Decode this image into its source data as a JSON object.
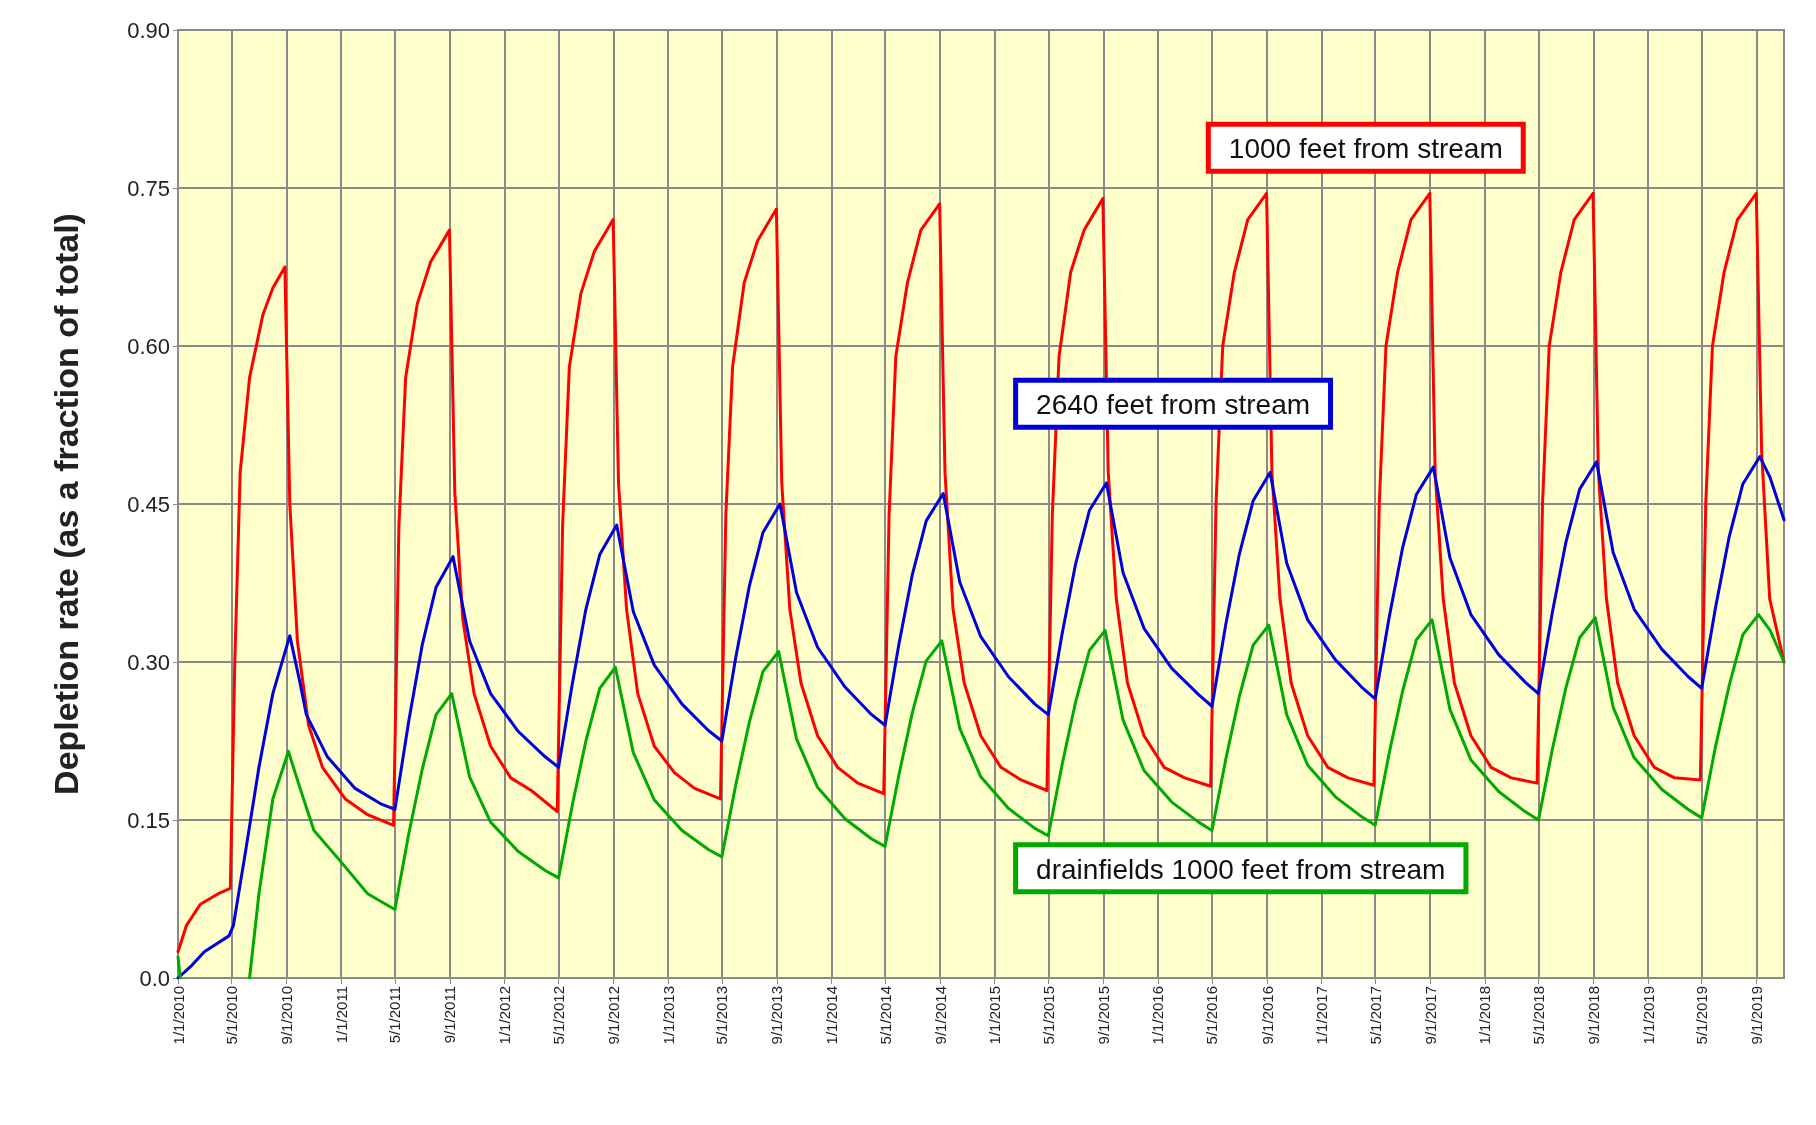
{
  "chart_data": {
    "type": "line",
    "ylabel": "Depletion rate (as a fraction of total)",
    "xlim": [
      "2010-01-01",
      "2019-11-01"
    ],
    "ylim": [
      0,
      0.9
    ],
    "yticks": [
      {
        "value": 0,
        "label": "0.0"
      },
      0.15,
      {
        "value": 0.3,
        "label": "0.30"
      },
      0.45,
      {
        "value": 0.6,
        "label": "0.60"
      },
      0.75,
      {
        "value": 0.9,
        "label": "0.90"
      }
    ],
    "xticks": [
      {
        "value": "2010-01-01",
        "label": "1/1/2010"
      },
      {
        "value": "2010-05-01",
        "label": "5/1/2010"
      },
      {
        "value": "2010-09-01",
        "label": "9/1/2010"
      },
      {
        "value": "2011-01-01",
        "label": "1/1/2011"
      },
      {
        "value": "2011-05-01",
        "label": "5/1/2011"
      },
      {
        "value": "2011-09-01",
        "label": "9/1/2011"
      },
      {
        "value": "2012-01-01",
        "label": "1/1/2012"
      },
      {
        "value": "2012-05-01",
        "label": "5/1/2012"
      },
      {
        "value": "2012-09-01",
        "label": "9/1/2012"
      },
      {
        "value": "2013-01-01",
        "label": "1/1/2013"
      },
      {
        "value": "2013-05-01",
        "label": "5/1/2013"
      },
      {
        "value": "2013-09-01",
        "label": "9/1/2013"
      },
      {
        "value": "2014-01-01",
        "label": "1/1/2014"
      },
      {
        "value": "2014-05-01",
        "label": "5/1/2014"
      },
      {
        "value": "2014-09-01",
        "label": "9/1/2014"
      },
      {
        "value": "2015-01-01",
        "label": "1/1/2015"
      },
      {
        "value": "2015-05-01",
        "label": "5/1/2015"
      },
      {
        "value": "2015-09-01",
        "label": "9/1/2015"
      },
      {
        "value": "2016-01-01",
        "label": "1/1/2016"
      },
      {
        "value": "2016-05-01",
        "label": "5/1/2016"
      },
      {
        "value": "2016-09-01",
        "label": "9/1/2016"
      },
      {
        "value": "2017-01-01",
        "label": "1/1/2017"
      },
      {
        "value": "2017-05-01",
        "label": "5/1/2017"
      },
      {
        "value": "2017-09-01",
        "label": "9/1/2017"
      },
      {
        "value": "2018-01-01",
        "label": "1/1/2018"
      },
      {
        "value": "2018-05-01",
        "label": "5/1/2018"
      },
      {
        "value": "2018-09-01",
        "label": "9/1/2018"
      },
      {
        "value": "2019-01-01",
        "label": "1/1/2019"
      },
      {
        "value": "2019-05-01",
        "label": "5/1/2019"
      },
      {
        "value": "2019-09-01",
        "label": "9/1/2019"
      }
    ],
    "grid": true,
    "legend": false,
    "marker": "none",
    "line_style": "solid",
    "series": [
      {
        "name": "1000 feet from stream",
        "color": "#ff0000",
        "x": [
          "2010-01-01",
          "2010-01-20",
          "2010-02-20",
          "2010-04-01",
          "2010-04-28",
          "2010-05-08",
          "2010-05-20",
          "2010-06-10",
          "2010-07-10",
          "2010-08-01",
          "2010-08-28",
          "2010-09-08",
          "2010-09-25",
          "2010-10-20",
          "2010-11-20",
          "2011-01-10",
          "2011-03-01",
          "2011-04-28",
          "2011-05-10",
          "2011-05-25",
          "2011-06-20",
          "2011-07-20",
          "2011-08-31",
          "2011-09-12",
          "2011-09-30",
          "2011-10-25",
          "2011-12-01",
          "2012-01-15",
          "2012-03-01",
          "2012-04-28",
          "2012-05-10",
          "2012-05-25",
          "2012-06-20",
          "2012-07-20",
          "2012-08-31",
          "2012-09-12",
          "2012-09-30",
          "2012-10-25",
          "2012-12-01",
          "2013-01-15",
          "2013-03-01",
          "2013-04-28",
          "2013-05-10",
          "2013-05-25",
          "2013-06-20",
          "2013-07-20",
          "2013-08-31",
          "2013-09-12",
          "2013-09-30",
          "2013-10-25",
          "2013-12-01",
          "2014-01-15",
          "2014-03-01",
          "2014-04-28",
          "2014-05-10",
          "2014-05-25",
          "2014-06-20",
          "2014-07-20",
          "2014-08-31",
          "2014-09-12",
          "2014-09-30",
          "2014-10-25",
          "2014-12-01",
          "2015-01-15",
          "2015-03-01",
          "2015-04-28",
          "2015-05-10",
          "2015-05-25",
          "2015-06-20",
          "2015-07-20",
          "2015-08-31",
          "2015-09-12",
          "2015-09-30",
          "2015-10-25",
          "2015-12-01",
          "2016-01-15",
          "2016-03-01",
          "2016-04-28",
          "2016-05-10",
          "2016-05-25",
          "2016-06-20",
          "2016-07-20",
          "2016-08-31",
          "2016-09-12",
          "2016-09-30",
          "2016-10-25",
          "2016-12-01",
          "2017-01-15",
          "2017-03-01",
          "2017-04-28",
          "2017-05-10",
          "2017-05-25",
          "2017-06-20",
          "2017-07-20",
          "2017-08-31",
          "2017-09-12",
          "2017-09-30",
          "2017-10-25",
          "2017-12-01",
          "2018-01-15",
          "2018-03-01",
          "2018-04-28",
          "2018-05-10",
          "2018-05-25",
          "2018-06-20",
          "2018-07-20",
          "2018-08-31",
          "2018-09-12",
          "2018-09-30",
          "2018-10-25",
          "2018-12-01",
          "2019-01-15",
          "2019-03-01",
          "2019-04-28",
          "2019-05-10",
          "2019-05-25",
          "2019-06-20",
          "2019-07-20",
          "2019-08-31",
          "2019-09-12",
          "2019-09-30",
          "2019-11-01"
        ],
        "values": [
          0.025,
          0.05,
          0.07,
          0.08,
          0.085,
          0.3,
          0.48,
          0.57,
          0.63,
          0.655,
          0.675,
          0.45,
          0.32,
          0.24,
          0.2,
          0.17,
          0.155,
          0.145,
          0.43,
          0.57,
          0.64,
          0.68,
          0.71,
          0.46,
          0.34,
          0.27,
          0.22,
          0.19,
          0.178,
          0.158,
          0.43,
          0.58,
          0.65,
          0.69,
          0.72,
          0.47,
          0.35,
          0.27,
          0.22,
          0.195,
          0.18,
          0.17,
          0.44,
          0.58,
          0.66,
          0.7,
          0.73,
          0.47,
          0.35,
          0.28,
          0.23,
          0.2,
          0.185,
          0.175,
          0.44,
          0.59,
          0.66,
          0.71,
          0.735,
          0.48,
          0.35,
          0.28,
          0.23,
          0.2,
          0.188,
          0.178,
          0.44,
          0.59,
          0.67,
          0.71,
          0.74,
          0.48,
          0.36,
          0.28,
          0.23,
          0.2,
          0.19,
          0.182,
          0.45,
          0.6,
          0.67,
          0.72,
          0.745,
          0.48,
          0.36,
          0.28,
          0.23,
          0.2,
          0.19,
          0.183,
          0.45,
          0.6,
          0.67,
          0.72,
          0.745,
          0.48,
          0.36,
          0.28,
          0.23,
          0.2,
          0.19,
          0.185,
          0.45,
          0.6,
          0.67,
          0.72,
          0.745,
          0.48,
          0.36,
          0.28,
          0.23,
          0.2,
          0.19,
          0.188,
          0.45,
          0.6,
          0.67,
          0.72,
          0.745,
          0.5,
          0.36,
          0.3
        ]
      },
      {
        "name": "2640 feet from stream",
        "color": "#0000dd",
        "x": [
          "2010-01-01",
          "2010-02-01",
          "2010-03-01",
          "2010-04-25",
          "2010-05-05",
          "2010-06-01",
          "2010-07-01",
          "2010-08-01",
          "2010-09-08",
          "2010-10-01",
          "2010-10-15",
          "2010-12-01",
          "2011-02-01",
          "2011-04-01",
          "2011-05-01",
          "2011-06-01",
          "2011-07-01",
          "2011-08-01",
          "2011-09-08",
          "2011-10-15",
          "2011-12-01",
          "2012-02-01",
          "2012-04-01",
          "2012-05-01",
          "2012-06-01",
          "2012-07-01",
          "2012-08-01",
          "2012-09-08",
          "2012-10-15",
          "2012-12-01",
          "2013-02-01",
          "2013-04-01",
          "2013-05-01",
          "2013-06-01",
          "2013-07-01",
          "2013-08-01",
          "2013-09-08",
          "2013-10-15",
          "2013-12-01",
          "2014-02-01",
          "2014-04-01",
          "2014-05-01",
          "2014-06-01",
          "2014-07-01",
          "2014-08-01",
          "2014-09-08",
          "2014-10-15",
          "2014-12-01",
          "2015-02-01",
          "2015-04-01",
          "2015-05-01",
          "2015-06-01",
          "2015-07-01",
          "2015-08-01",
          "2015-09-08",
          "2015-10-15",
          "2015-12-01",
          "2016-02-01",
          "2016-04-01",
          "2016-05-01",
          "2016-06-01",
          "2016-07-01",
          "2016-08-01",
          "2016-09-08",
          "2016-10-15",
          "2016-12-01",
          "2017-02-01",
          "2017-04-01",
          "2017-05-01",
          "2017-06-01",
          "2017-07-01",
          "2017-08-01",
          "2017-09-08",
          "2017-10-15",
          "2017-12-01",
          "2018-02-01",
          "2018-04-01",
          "2018-05-01",
          "2018-06-01",
          "2018-07-01",
          "2018-08-01",
          "2018-09-08",
          "2018-10-15",
          "2018-12-01",
          "2019-02-01",
          "2019-04-01",
          "2019-05-01",
          "2019-06-01",
          "2019-07-01",
          "2019-08-01",
          "2019-09-08",
          "2019-10-01",
          "2019-11-01"
        ],
        "values": [
          0,
          0.012,
          0.025,
          0.04,
          0.05,
          0.12,
          0.2,
          0.27,
          0.325,
          0.28,
          0.25,
          0.21,
          0.18,
          0.165,
          0.16,
          0.244,
          0.316,
          0.371,
          0.4,
          0.32,
          0.27,
          0.234,
          0.21,
          0.2,
          0.28,
          0.35,
          0.402,
          0.43,
          0.348,
          0.297,
          0.26,
          0.235,
          0.225,
          0.304,
          0.371,
          0.423,
          0.45,
          0.366,
          0.314,
          0.276,
          0.25,
          0.24,
          0.317,
          0.383,
          0.434,
          0.46,
          0.376,
          0.324,
          0.286,
          0.26,
          0.25,
          0.327,
          0.393,
          0.444,
          0.47,
          0.385,
          0.332,
          0.294,
          0.269,
          0.258,
          0.336,
          0.402,
          0.453,
          0.48,
          0.394,
          0.34,
          0.302,
          0.276,
          0.265,
          0.342,
          0.408,
          0.459,
          0.485,
          0.399,
          0.345,
          0.307,
          0.281,
          0.27,
          0.347,
          0.413,
          0.464,
          0.49,
          0.404,
          0.35,
          0.312,
          0.286,
          0.275,
          0.352,
          0.418,
          0.469,
          0.495,
          0.475,
          0.435
        ]
      },
      {
        "name": "drainfields 1000 feet from stream",
        "color": "#00aa00",
        "x": [
          "2010-01-01",
          "2010-01-06",
          "2010-03-01",
          "2010-06-10",
          "2010-07-01",
          "2010-08-01",
          "2010-09-05",
          "2010-10-01",
          "2010-11-01",
          "2011-01-01",
          "2011-03-01",
          "2011-05-01",
          "2011-06-01",
          "2011-07-01",
          "2011-08-01",
          "2011-09-05",
          "2011-10-15",
          "2011-12-01",
          "2012-02-01",
          "2012-04-01",
          "2012-05-01",
          "2012-06-01",
          "2012-07-01",
          "2012-08-01",
          "2012-09-05",
          "2012-10-15",
          "2012-12-01",
          "2013-02-01",
          "2013-04-01",
          "2013-05-01",
          "2013-06-01",
          "2013-07-01",
          "2013-08-01",
          "2013-09-05",
          "2013-10-15",
          "2013-12-01",
          "2014-02-01",
          "2014-04-01",
          "2014-05-01",
          "2014-06-01",
          "2014-07-01",
          "2014-08-01",
          "2014-09-05",
          "2014-10-15",
          "2014-12-01",
          "2015-02-01",
          "2015-04-01",
          "2015-05-01",
          "2015-06-01",
          "2015-07-01",
          "2015-08-01",
          "2015-09-05",
          "2015-10-15",
          "2015-12-01",
          "2016-02-01",
          "2016-04-01",
          "2016-05-01",
          "2016-06-01",
          "2016-07-01",
          "2016-08-01",
          "2016-09-05",
          "2016-10-15",
          "2016-12-01",
          "2017-02-01",
          "2017-04-01",
          "2017-05-01",
          "2017-06-01",
          "2017-07-01",
          "2017-08-01",
          "2017-09-05",
          "2017-10-15",
          "2017-12-01",
          "2018-02-01",
          "2018-04-01",
          "2018-05-01",
          "2018-06-01",
          "2018-07-01",
          "2018-08-01",
          "2018-09-05",
          "2018-10-15",
          "2018-12-01",
          "2019-02-01",
          "2019-04-01",
          "2019-05-01",
          "2019-06-01",
          "2019-07-01",
          "2019-08-01",
          "2019-09-05",
          "2019-10-01",
          "2019-11-01"
        ],
        "values": [
          0.02,
          0,
          null,
          0,
          0.08,
          0.17,
          0.215,
          0.18,
          0.14,
          0.11,
          0.08,
          0.065,
          0.137,
          0.198,
          0.25,
          0.27,
          0.191,
          0.148,
          0.12,
          0.102,
          0.095,
          0.165,
          0.225,
          0.275,
          0.295,
          0.214,
          0.169,
          0.14,
          0.122,
          0.115,
          0.183,
          0.242,
          0.291,
          0.31,
          0.227,
          0.181,
          0.151,
          0.132,
          0.125,
          0.193,
          0.252,
          0.301,
          0.32,
          0.237,
          0.191,
          0.161,
          0.142,
          0.135,
          0.203,
          0.262,
          0.311,
          0.33,
          0.245,
          0.197,
          0.167,
          0.148,
          0.14,
          0.208,
          0.267,
          0.316,
          0.335,
          0.25,
          0.202,
          0.172,
          0.153,
          0.145,
          0.213,
          0.272,
          0.321,
          0.34,
          0.255,
          0.207,
          0.177,
          0.158,
          0.15,
          0.217,
          0.275,
          0.323,
          0.342,
          0.257,
          0.209,
          0.179,
          0.16,
          0.152,
          0.22,
          0.277,
          0.326,
          0.345,
          0.33,
          0.3
        ]
      }
    ]
  }
}
